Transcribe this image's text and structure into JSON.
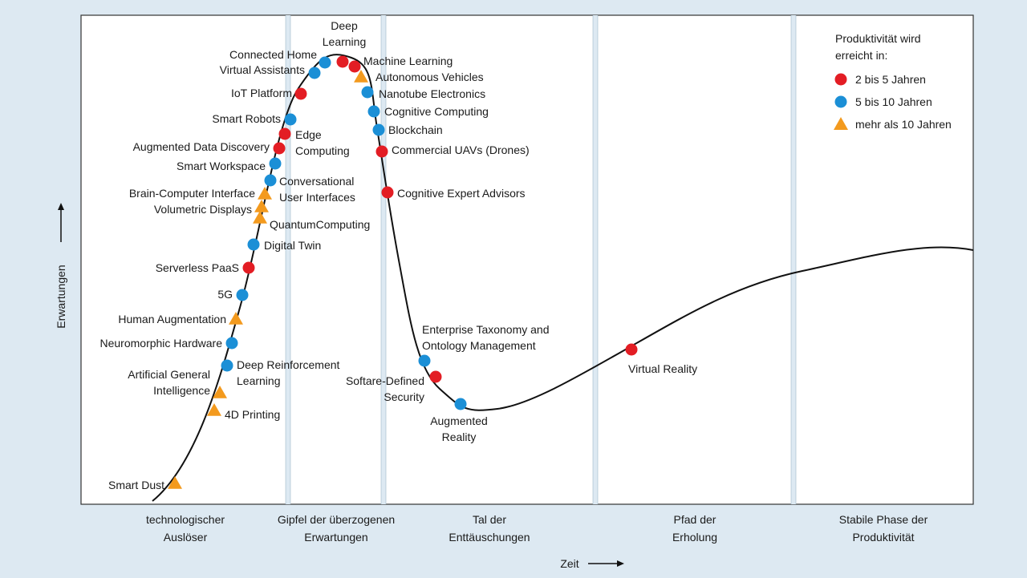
{
  "chart_data": {
    "type": "scatter",
    "title": "",
    "xlabel": "Zeit",
    "ylabel": "Erwartungen",
    "phases": [
      [
        "technologischer",
        "Auslöser"
      ],
      [
        "Gipfel der überzogenen",
        "Erwartungen"
      ],
      [
        "Tal der",
        "Enttäuschungen"
      ],
      [
        "Pfad der",
        "Erholung"
      ],
      [
        "Stabile Phase der",
        "Produktivität"
      ]
    ],
    "legend": {
      "title": [
        "Produktivität wird",
        "erreicht in:"
      ],
      "placement": "top-right",
      "items": [
        {
          "label": "2 bis 5 Jahren",
          "shape": "circle",
          "color": "#e31d24"
        },
        {
          "label": "5 bis 10 Jahren",
          "shape": "circle",
          "color": "#1b8fd6"
        },
        {
          "label": "mehr als 10 Jahren",
          "shape": "triangle",
          "color": "#f39a1e"
        }
      ]
    },
    "points": [
      {
        "label": [
          "Smart Dust"
        ],
        "cat": 2
      },
      {
        "label": [
          "4D Printing"
        ],
        "cat": 2
      },
      {
        "label": [
          "Artificial General",
          "Intelligence"
        ],
        "cat": 2
      },
      {
        "label": [
          "Deep Reinforcement",
          "Learning"
        ],
        "cat": 1
      },
      {
        "label": [
          "Neuromorphic Hardware"
        ],
        "cat": 1
      },
      {
        "label": [
          "Human Augmentation"
        ],
        "cat": 2
      },
      {
        "label": [
          "5G"
        ],
        "cat": 1
      },
      {
        "label": [
          "Serverless PaaS"
        ],
        "cat": 0
      },
      {
        "label": [
          "Digital Twin"
        ],
        "cat": 1
      },
      {
        "label": [
          "QuantumComputing"
        ],
        "cat": 2
      },
      {
        "label": [
          "Volumetric Displays"
        ],
        "cat": 2
      },
      {
        "label": [
          "Brain-Computer Interface"
        ],
        "cat": 2
      },
      {
        "label": [
          "Conversational",
          "User Interfaces"
        ],
        "cat": 1
      },
      {
        "label": [
          "Smart Workspace"
        ],
        "cat": 1
      },
      {
        "label": [
          "Augmented Data Discovery"
        ],
        "cat": 0
      },
      {
        "label": [
          "Edge",
          "Computing"
        ],
        "cat": 0
      },
      {
        "label": [
          "Smart Robots"
        ],
        "cat": 1
      },
      {
        "label": [
          "IoT Platform"
        ],
        "cat": 0
      },
      {
        "label": [
          "Virtual Assistants"
        ],
        "cat": 1
      },
      {
        "label": [
          "Connected Home"
        ],
        "cat": 1
      },
      {
        "label": [
          "Deep",
          "Learning"
        ],
        "cat": 0
      },
      {
        "label": [
          "Machine Learning"
        ],
        "cat": 0
      },
      {
        "label": [
          "Autonomous Vehicles"
        ],
        "cat": 2
      },
      {
        "label": [
          "Nanotube Electronics"
        ],
        "cat": 1
      },
      {
        "label": [
          "Cognitive Computing"
        ],
        "cat": 1
      },
      {
        "label": [
          "Blockchain"
        ],
        "cat": 1
      },
      {
        "label": [
          "Commercial UAVs (Drones)"
        ],
        "cat": 0
      },
      {
        "label": [
          "Cognitive Expert Advisors"
        ],
        "cat": 0
      },
      {
        "label": [
          "Enterprise Taxonomy and",
          "Ontology Management"
        ],
        "cat": 1
      },
      {
        "label": [
          "Softare-Defined",
          "Security"
        ],
        "cat": 0
      },
      {
        "label": [
          "Augmented",
          "Reality"
        ],
        "cat": 1
      },
      {
        "label": [
          "Virtual Reality"
        ],
        "cat": 0
      }
    ]
  }
}
